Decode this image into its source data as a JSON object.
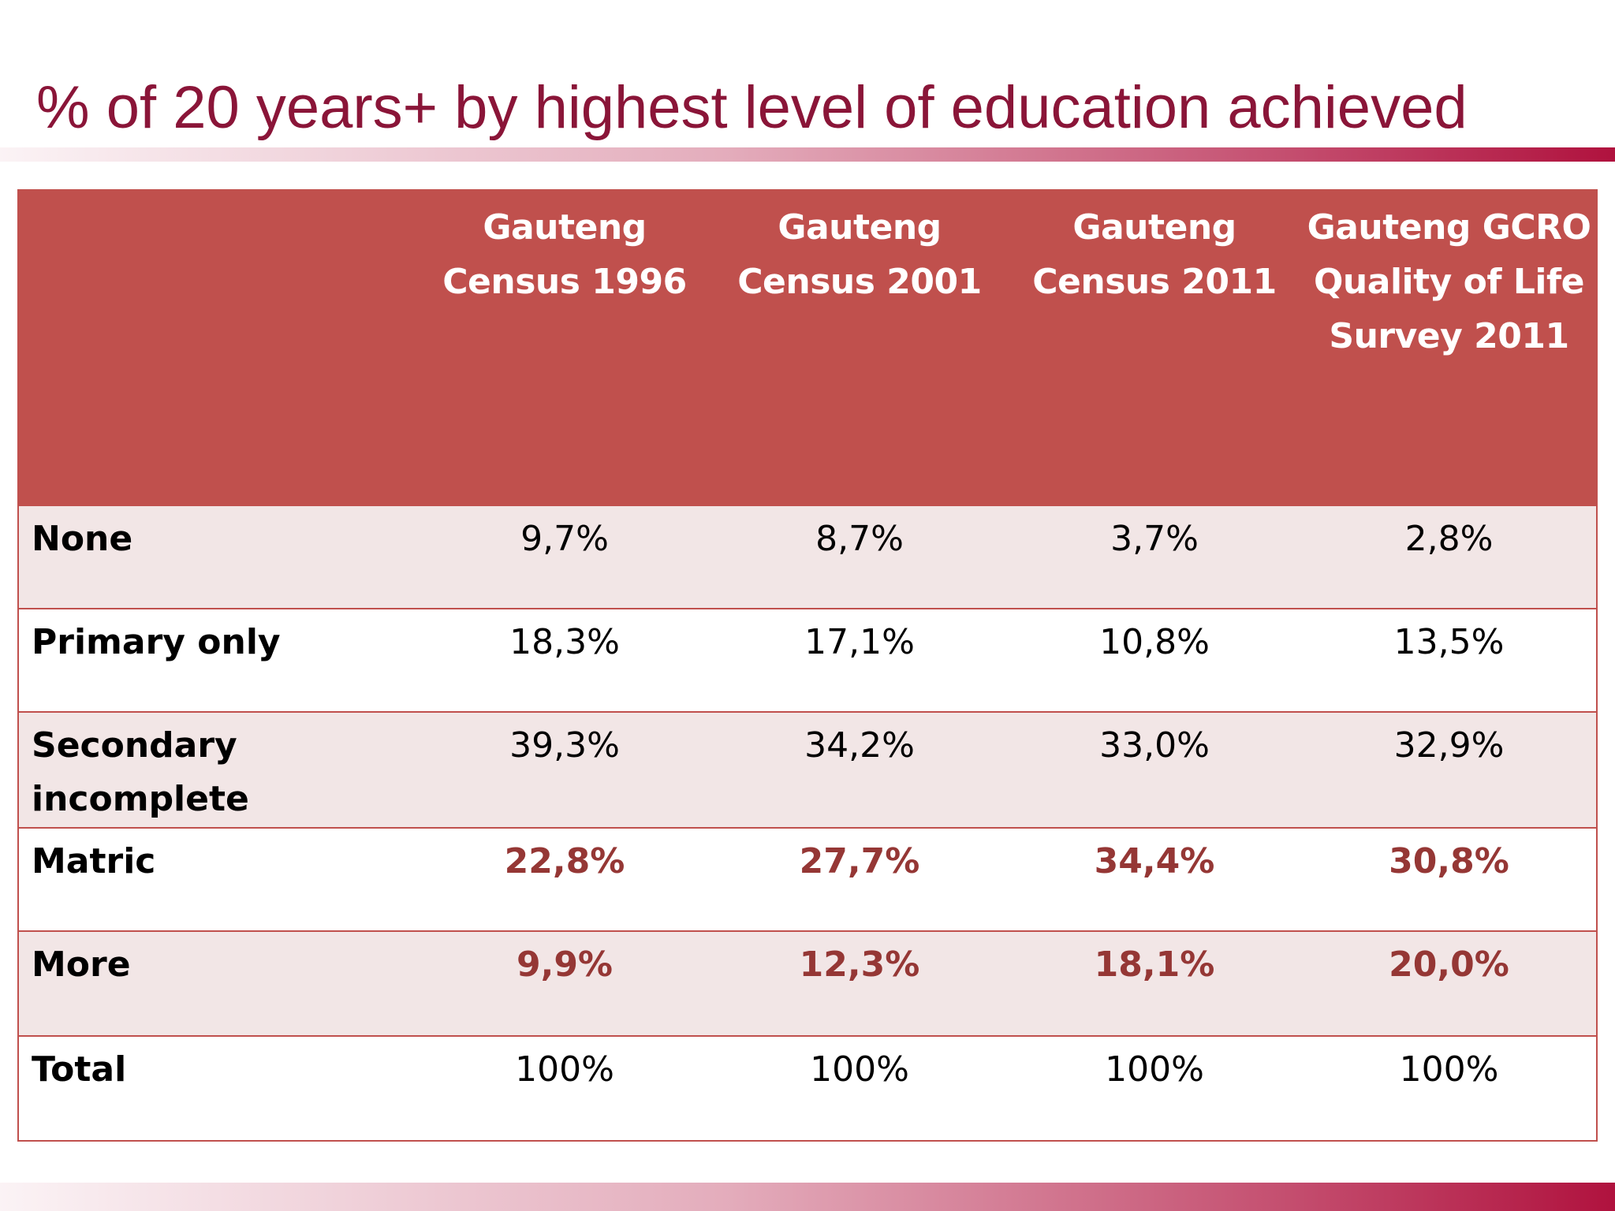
{
  "title": "% of 20 years+ by highest level of education achieved",
  "table": {
    "columns": [
      "Gauteng Census 1996",
      "Gauteng Census 2001",
      "Gauteng Census 2011",
      "Gauteng GCRO Quality of Life Survey 2011"
    ],
    "rows": [
      {
        "label": "None",
        "values": [
          "9,7%",
          "8,7%",
          "3,7%",
          "2,8%"
        ],
        "highlight": false
      },
      {
        "label": "Primary only",
        "values": [
          "18,3%",
          "17,1%",
          "10,8%",
          "13,5%"
        ],
        "highlight": false
      },
      {
        "label": "Secondary incomplete",
        "values": [
          "39,3%",
          "34,2%",
          "33,0%",
          "32,9%"
        ],
        "highlight": false
      },
      {
        "label": "Matric",
        "values": [
          "22,8%",
          "27,7%",
          "34,4%",
          "30,8%"
        ],
        "highlight": true
      },
      {
        "label": "More",
        "values": [
          "9,9%",
          "12,3%",
          "18,1%",
          "20,0%"
        ],
        "highlight": true
      },
      {
        "label": "Total",
        "values": [
          "100%",
          "100%",
          "100%",
          "100%"
        ],
        "highlight": false
      }
    ]
  },
  "colors": {
    "title": "#8a1538",
    "header_fill": "#c0504d",
    "row_shade": "#f2e6e6",
    "highlight_text": "#953735"
  }
}
